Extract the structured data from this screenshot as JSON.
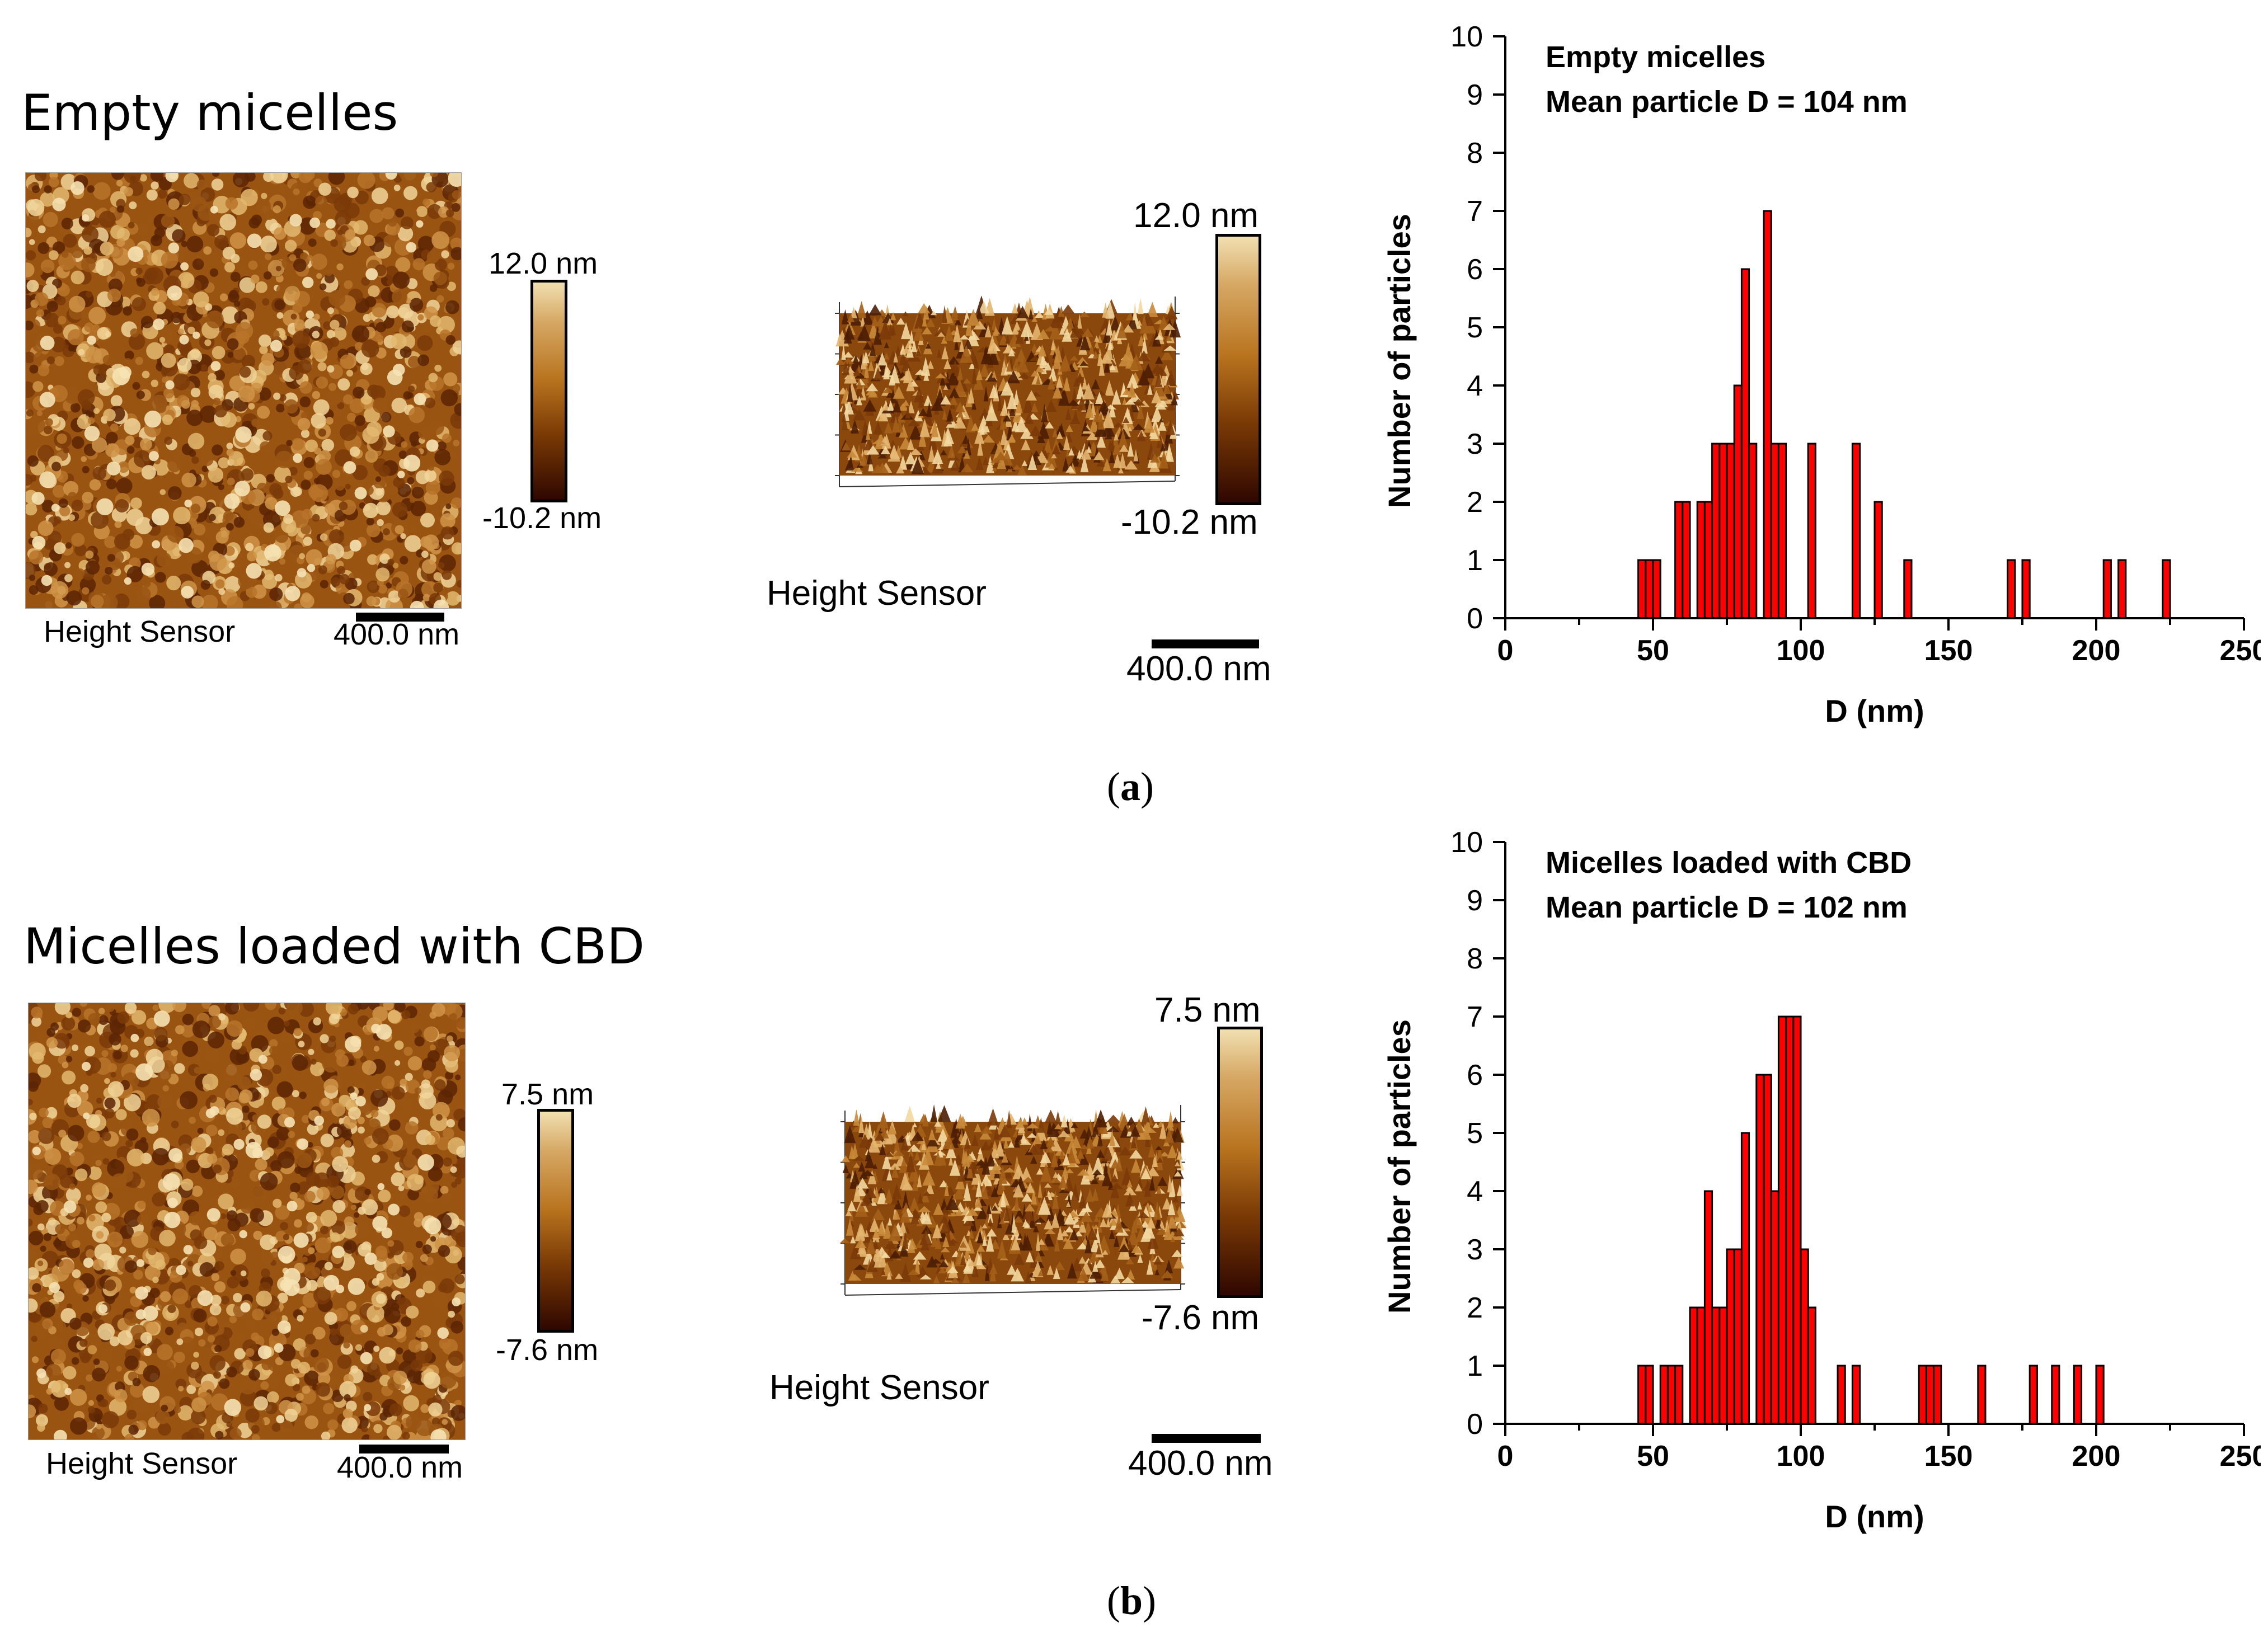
{
  "panel_a": {
    "title": "Empty micelles",
    "height_sensor_2d": "Height Sensor",
    "scale_2d": "400.0 nm",
    "cbar_2d_max": "12.0 nm",
    "cbar_2d_min": "-10.2 nm",
    "cbar_3d_max": "12.0 nm",
    "cbar_3d_min": "-10.2 nm",
    "height_sensor_3d": "Height Sensor",
    "scale_3d": "400.0 nm",
    "caption": "a"
  },
  "panel_b": {
    "title": "Micelles loaded with CBD",
    "height_sensor_2d": "Height Sensor",
    "scale_2d": "400.0 nm",
    "cbar_2d_max": "7.5 nm",
    "cbar_2d_min": "-7.6 nm",
    "cbar_3d_max": "7.5 nm",
    "cbar_3d_min": "-7.6 nm",
    "height_sensor_3d": "Height Sensor",
    "scale_3d": "400.0 nm",
    "caption": "b"
  },
  "colors": {
    "bar_fill": "#ff0000",
    "bar_edge": "#000000"
  },
  "chart_data": [
    {
      "type": "bar",
      "annotation_line1": "Empty micelles",
      "annotation_line2": "Mean particle D = 104 nm",
      "xlabel": "D (nm)",
      "ylabel": "Number of particles",
      "xlim": [
        0,
        250
      ],
      "ylim": [
        0,
        10
      ],
      "xticks": [
        0,
        50,
        100,
        150,
        200,
        250
      ],
      "yticks": [
        0,
        1,
        2,
        3,
        4,
        5,
        6,
        7,
        8,
        9,
        10
      ],
      "bin_width": 2.5,
      "bins": [
        {
          "x": 45,
          "count": 1
        },
        {
          "x": 47.5,
          "count": 1
        },
        {
          "x": 50,
          "count": 1
        },
        {
          "x": 57.5,
          "count": 2
        },
        {
          "x": 60,
          "count": 2
        },
        {
          "x": 65,
          "count": 2
        },
        {
          "x": 67.5,
          "count": 2
        },
        {
          "x": 70,
          "count": 3
        },
        {
          "x": 72.5,
          "count": 3
        },
        {
          "x": 75,
          "count": 3
        },
        {
          "x": 77.5,
          "count": 4
        },
        {
          "x": 80,
          "count": 6
        },
        {
          "x": 82.5,
          "count": 3
        },
        {
          "x": 87.5,
          "count": 7
        },
        {
          "x": 90,
          "count": 3
        },
        {
          "x": 92.5,
          "count": 3
        },
        {
          "x": 102.5,
          "count": 3
        },
        {
          "x": 117.5,
          "count": 3
        },
        {
          "x": 125,
          "count": 2
        },
        {
          "x": 135,
          "count": 1
        },
        {
          "x": 170,
          "count": 1
        },
        {
          "x": 175,
          "count": 1
        },
        {
          "x": 202.5,
          "count": 1
        },
        {
          "x": 207.5,
          "count": 1
        },
        {
          "x": 222.5,
          "count": 1
        }
      ]
    },
    {
      "type": "bar",
      "annotation_line1": "Micelles loaded with CBD",
      "annotation_line2": "Mean particle D = 102 nm",
      "xlabel": "D (nm)",
      "ylabel": "Number of particles",
      "xlim": [
        0,
        250
      ],
      "ylim": [
        0,
        10
      ],
      "xticks": [
        0,
        50,
        100,
        150,
        200,
        250
      ],
      "yticks": [
        0,
        1,
        2,
        3,
        4,
        5,
        6,
        7,
        8,
        9,
        10
      ],
      "bin_width": 2.5,
      "bins": [
        {
          "x": 45,
          "count": 1
        },
        {
          "x": 47.5,
          "count": 1
        },
        {
          "x": 52.5,
          "count": 1
        },
        {
          "x": 55,
          "count": 1
        },
        {
          "x": 57.5,
          "count": 1
        },
        {
          "x": 62.5,
          "count": 2
        },
        {
          "x": 65,
          "count": 2
        },
        {
          "x": 67.5,
          "count": 4
        },
        {
          "x": 70,
          "count": 2
        },
        {
          "x": 72.5,
          "count": 2
        },
        {
          "x": 75,
          "count": 3
        },
        {
          "x": 77.5,
          "count": 3
        },
        {
          "x": 80,
          "count": 5
        },
        {
          "x": 85,
          "count": 6
        },
        {
          "x": 87.5,
          "count": 6
        },
        {
          "x": 90,
          "count": 4
        },
        {
          "x": 92.5,
          "count": 7
        },
        {
          "x": 95,
          "count": 7
        },
        {
          "x": 97.5,
          "count": 7
        },
        {
          "x": 100,
          "count": 3
        },
        {
          "x": 102.5,
          "count": 2
        },
        {
          "x": 112.5,
          "count": 1
        },
        {
          "x": 117.5,
          "count": 1
        },
        {
          "x": 140,
          "count": 1
        },
        {
          "x": 142.5,
          "count": 1
        },
        {
          "x": 145,
          "count": 1
        },
        {
          "x": 160,
          "count": 1
        },
        {
          "x": 177.5,
          "count": 1
        },
        {
          "x": 185,
          "count": 1
        },
        {
          "x": 192.5,
          "count": 1
        },
        {
          "x": 200,
          "count": 1
        }
      ]
    }
  ]
}
